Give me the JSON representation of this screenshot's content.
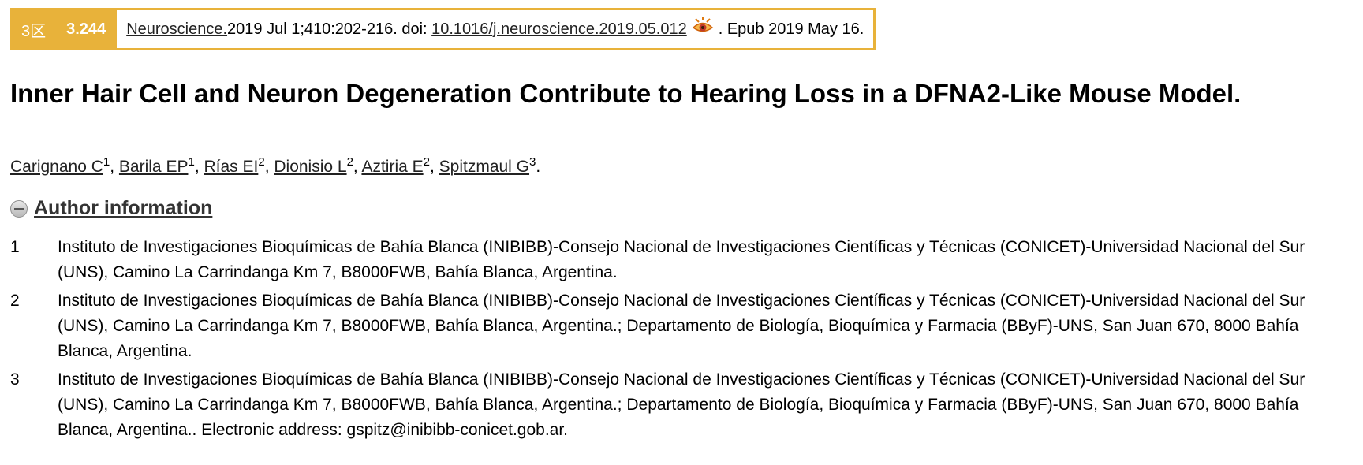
{
  "citation": {
    "zone": "3区",
    "impact_factor": "3.244",
    "journal": "Neuroscience.",
    "date_volume": "2019 Jul 1;410:202-216. doi: ",
    "doi": "10.1016/j.neuroscience.2019.05.012",
    "epub": ". Epub 2019 May 16.",
    "accent_color": "#e8b23a",
    "icon": "eye-icon"
  },
  "article": {
    "title": "Inner Hair Cell and Neuron Degeneration Contribute to Hearing Loss in a DFNA2-Like Mouse Model."
  },
  "authors": [
    {
      "name": "Carignano C",
      "aff": "1",
      "sep": ", "
    },
    {
      "name": "Barila EP",
      "aff": "1",
      "sep": ", "
    },
    {
      "name": "Rías EI",
      "aff": "2",
      "sep": ", "
    },
    {
      "name": "Dionisio L",
      "aff": "2",
      "sep": ", "
    },
    {
      "name": "Aztiria E",
      "aff": "2",
      "sep": ", "
    },
    {
      "name": "Spitzmaul G",
      "aff": "3",
      "sep": "."
    }
  ],
  "author_info": {
    "label": "Author information",
    "icon": "minus-icon"
  },
  "affiliations": [
    {
      "num": "1",
      "text": "Instituto de Investigaciones Bioquímicas de Bahía Blanca (INIBIBB)-Consejo Nacional de Investigaciones Científicas y Técnicas (CONICET)-Universidad Nacional del Sur (UNS), Camino La Carrindanga Km 7, B8000FWB, Bahía Blanca, Argentina."
    },
    {
      "num": "2",
      "text": "Instituto de Investigaciones Bioquímicas de Bahía Blanca (INIBIBB)-Consejo Nacional de Investigaciones Científicas y Técnicas (CONICET)-Universidad Nacional del Sur (UNS), Camino La Carrindanga Km 7, B8000FWB, Bahía Blanca, Argentina.; Departamento de Biología, Bioquímica y Farmacia (BByF)-UNS, San Juan 670, 8000 Bahía Blanca, Argentina."
    },
    {
      "num": "3",
      "text": "Instituto de Investigaciones Bioquímicas de Bahía Blanca (INIBIBB)-Consejo Nacional de Investigaciones Científicas y Técnicas (CONICET)-Universidad Nacional del Sur (UNS), Camino La Carrindanga Km 7, B8000FWB, Bahía Blanca, Argentina.; Departamento de Biología, Bioquímica y Farmacia (BByF)-UNS, San Juan 670, 8000 Bahía Blanca, Argentina.. Electronic address: gspitz@inibibb-conicet.gob.ar."
    }
  ]
}
